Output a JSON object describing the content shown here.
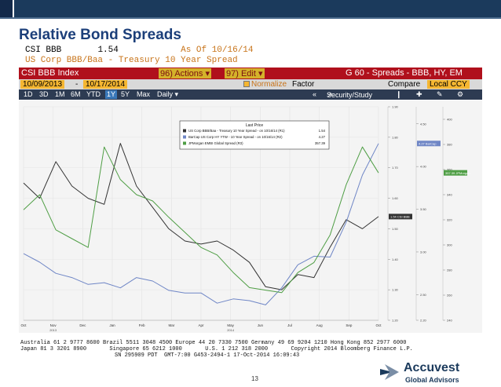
{
  "slide": {
    "title": "Relative Bond Spreads",
    "page_number": "13"
  },
  "terminal": {
    "header_ticker": "CSI BBB",
    "header_value": "1.54",
    "header_asof": "As Of 10/16/14",
    "header_desc": "US Corp BBB/Baa - Treasury 10 Year Spread",
    "menu": {
      "index": "CSI BBB Index",
      "actions": "96) Actions ▾",
      "edit": "97) Edit ▾",
      "page": "G 60 - Spreads - BBB, HY, EM"
    },
    "dates": {
      "start": "10/09/2013",
      "end": "10/17/2014",
      "normalize": "Normalize",
      "factor": "Factor",
      "compare": "Compare",
      "currency": "Local CCY"
    },
    "toolbar": {
      "ranges": [
        "1D",
        "3D",
        "1M",
        "6M",
        "YTD",
        "1Y",
        "5Y",
        "Max"
      ],
      "selected_range": "1Y",
      "frequency": "Daily ▾",
      "security": "Security/Study"
    },
    "footer_line1": "Australia 61 2 9777 8600 Brazil 5511 3048 4500 Europe 44 20 7330 7500 Germany 49 69 9204 1210 Hong Kong 852 2977 6000",
    "footer_line2": "Japan 81 3 3201 8900       Singapore 65 6212 1000       U.S. 1 212 318 2000       Copyright 2014 Bloomberg Finance L.P.",
    "footer_line3": "SN 295909 PDT  GMT-7:00 G453-2494-1 17-Oct-2014 16:09:43"
  },
  "logo": {
    "name": "Accuvest",
    "sub": "Global Advisors"
  },
  "colors": {
    "series_r1": "#333333",
    "series_r2": "#6f86c6",
    "series_r3": "#4f9e45",
    "menu_bar": "#b0101c",
    "brand": "#1b3a5c"
  },
  "chart_data": {
    "type": "line",
    "legend_title": "Last Price",
    "legend_position": "top-center",
    "x_ticks": [
      "Oct",
      "Nov",
      "Dec",
      "Jan",
      "Feb",
      "Mar",
      "Apr",
      "May",
      "Jun",
      "Jul",
      "Aug",
      "Sep",
      "Oct"
    ],
    "x_year_labels": [
      "2013",
      "2014"
    ],
    "series": [
      {
        "name": "US Corp BBB/Baa - Treasury 10 Year Spread - on 10/16/14 (R1)",
        "last": "1.54",
        "axis": "R1",
        "ylim": [
          1.2,
          1.9
        ],
        "tag": "1.54 CSI BBB",
        "values": [
          1.65,
          1.6,
          1.72,
          1.64,
          1.6,
          1.58,
          1.78,
          1.64,
          1.57,
          1.5,
          1.46,
          1.45,
          1.46,
          1.43,
          1.39,
          1.31,
          1.3,
          1.35,
          1.34,
          1.44,
          1.53,
          1.5,
          1.54
        ]
      },
      {
        "name": "BarCap US Corp HY YTW - 10 Year Spread - on 10/16/14 (R2)",
        "last": "4.27",
        "axis": "R2",
        "ylim": [
          2.2,
          4.7
        ],
        "tag": "4.27 BarCap",
        "values": [
          2.98,
          2.88,
          2.75,
          2.7,
          2.62,
          2.64,
          2.58,
          2.7,
          2.66,
          2.55,
          2.52,
          2.52,
          2.4,
          2.45,
          2.43,
          2.38,
          2.58,
          2.85,
          2.95,
          2.94,
          3.35,
          3.9,
          4.27
        ]
      },
      {
        "name": "JPMorgan EMBI Global Spread (R3)",
        "last": "357.39",
        "axis": "R3",
        "ylim": [
          240,
          410
        ],
        "tag": "357.39 JPMorgan",
        "values": [
          328,
          340,
          312,
          305,
          298,
          378,
          352,
          340,
          335,
          322,
          310,
          298,
          292,
          278,
          266,
          264,
          262,
          278,
          286,
          308,
          348,
          378,
          357.39
        ]
      }
    ],
    "axis_ticks": {
      "R1": [
        "1.20",
        "1.30",
        "1.40",
        "1.50",
        "1.60",
        "1.70",
        "1.80",
        "1.90"
      ],
      "R2": [
        "2.20",
        "2.50",
        "3.00",
        "3.50",
        "4.00",
        "4.50"
      ],
      "R3": [
        "240",
        "260",
        "280",
        "300",
        "320",
        "340",
        "360",
        "380",
        "400"
      ]
    }
  }
}
